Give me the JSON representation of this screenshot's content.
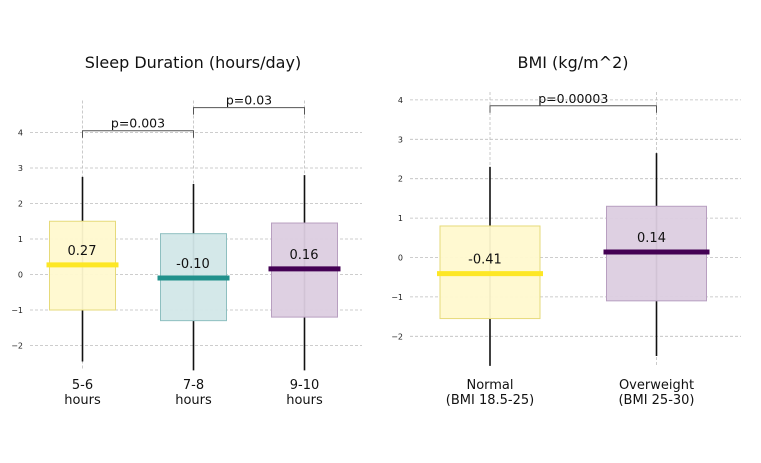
{
  "chart_data": [
    {
      "type": "box",
      "title": "Sleep Duration (hours/day)",
      "categories": [
        "5-6\nhours",
        "7-8\nhours",
        "9-10\nhours"
      ],
      "yticks": [
        4,
        3,
        2,
        1,
        0,
        -1,
        -2
      ],
      "ytick_labels": [
        "4",
        "3",
        "2",
        "1",
        "0",
        "−1",
        "−2"
      ],
      "ylim": [
        -2.7,
        4.9
      ],
      "grid": true,
      "boxes": [
        {
          "category": "5-6\nhours",
          "q1": -1.0,
          "q3": 1.5,
          "median": 0.27,
          "whisker_low": -2.45,
          "whisker_high": 2.75,
          "label": "0.27",
          "fill": "#fff9cf",
          "edge": "#e6da7a",
          "median_color": "#fde725"
        },
        {
          "category": "7-8\nhours",
          "q1": -1.3,
          "q3": 1.15,
          "median": -0.1,
          "whisker_low": -2.7,
          "whisker_high": 2.55,
          "label": "-0.10",
          "fill": "#d2e7e8",
          "edge": "#8ebfc0",
          "median_color": "#21918c"
        },
        {
          "category": "9-10\nhours",
          "q1": -1.2,
          "q3": 1.45,
          "median": 0.16,
          "whisker_low": -2.7,
          "whisker_high": 2.8,
          "label": "0.16",
          "fill": "#dccde0",
          "edge": "#b89fc0",
          "median_color": "#440154"
        }
      ],
      "significance": [
        {
          "from": 0,
          "to": 1,
          "y": 4.05,
          "text": "p=0.003"
        },
        {
          "from": 1,
          "to": 2,
          "y": 4.7,
          "text": "p=0.03"
        }
      ]
    },
    {
      "type": "box",
      "title": "BMI (kg/m^2)",
      "categories": [
        "Normal\n(BMI 18.5-25)",
        "Overweight\n(BMI 25-30)"
      ],
      "yticks": [
        4,
        3,
        2,
        1,
        0,
        -1,
        -2
      ],
      "ytick_labels": [
        "4",
        "3",
        "2",
        "1",
        "0",
        "−1",
        "−2"
      ],
      "ylim": [
        -2.75,
        4.2
      ],
      "grid": true,
      "boxes": [
        {
          "category": "Normal\n(BMI 18.5-25)",
          "q1": -1.55,
          "q3": 0.8,
          "median": -0.41,
          "whisker_low": -2.75,
          "whisker_high": 2.3,
          "label": "-0.41",
          "fill": "#fff9cf",
          "edge": "#e6da7a",
          "median_color": "#fde725"
        },
        {
          "category": "Overweight\n(BMI 25-30)",
          "q1": -1.1,
          "q3": 1.3,
          "median": 0.14,
          "whisker_low": -2.5,
          "whisker_high": 2.65,
          "label": "0.14",
          "fill": "#dccde0",
          "edge": "#b89fc0",
          "median_color": "#440154"
        }
      ],
      "significance": [
        {
          "from": 0,
          "to": 1,
          "y": 3.85,
          "text": "p=0.00003"
        }
      ]
    }
  ]
}
